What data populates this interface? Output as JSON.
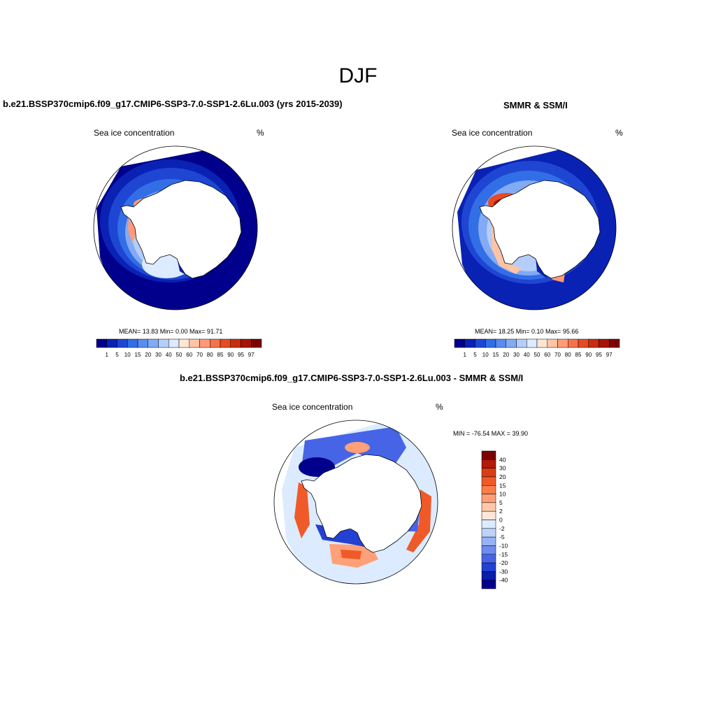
{
  "figure": {
    "title": "DJF"
  },
  "panels": [
    {
      "title": "b.e21.BSSP370cmip6.f09_g17.CMIP6-SSP3-7.0-SSP1-2.6Lu.003 (yrs 2015-2039)",
      "variable": "Sea ice concentration",
      "units": "%",
      "stats": "MEAN=  13.83  Min=   0.00  Max=  91.71"
    },
    {
      "title": "SMMR & SSM/I",
      "variable": "Sea ice concentration",
      "units": "%",
      "stats": "MEAN=  18.25  Min=   0.10  Max=  95.66"
    },
    {
      "title": "b.e21.BSSP370cmip6.f09_g17.CMIP6-SSP3-7.0-SSP1-2.6Lu.003 - SMMR & SSM/I",
      "variable": "Sea ice concentration",
      "units": "%",
      "stats": "MIN = -76.54 MAX =  39.90"
    }
  ],
  "concentration_colorbar": {
    "labels": [
      "1",
      "5",
      "10",
      "15",
      "20",
      "30",
      "40",
      "50",
      "60",
      "70",
      "80",
      "85",
      "90",
      "95",
      "97"
    ],
    "colors": [
      "#00008c",
      "#0a22b4",
      "#1e46d2",
      "#326ee6",
      "#5a8cf0",
      "#82aaf5",
      "#b4cdfa",
      "#dcebff",
      "#ffe6d2",
      "#ffc3a5",
      "#ff9b78",
      "#f5734b",
      "#e64b23",
      "#c82d0f",
      "#a51405",
      "#7d0000"
    ]
  },
  "difference_colorbar": {
    "labels": [
      "40",
      "30",
      "20",
      "15",
      "10",
      "5",
      "2",
      "0",
      "-2",
      "-5",
      "-10",
      "-15",
      "-20",
      "-30",
      "-40"
    ],
    "colors": [
      "#7d0000",
      "#b4190a",
      "#dc3c14",
      "#f05a28",
      "#fa7d4b",
      "#ffa078",
      "#ffc8aa",
      "#ffe6d7",
      "#dcebff",
      "#bed2fa",
      "#96b4f5",
      "#6e8cf0",
      "#4664e6",
      "#2341d2",
      "#0a1eaa",
      "#00008c"
    ]
  },
  "maps": {
    "colors": {
      "land": "#ffffff",
      "outline": "#000000"
    }
  }
}
